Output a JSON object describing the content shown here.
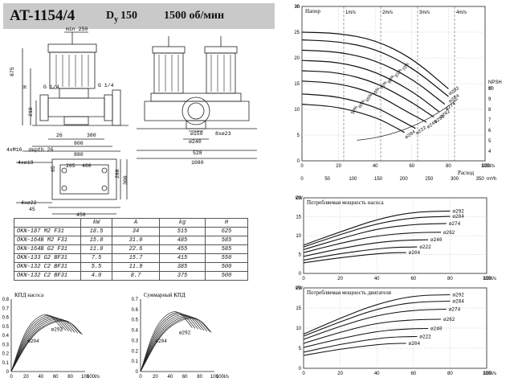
{
  "header": {
    "title": "AT-1154/4",
    "dn_prefix": "D",
    "dn_sub": "y",
    "dn_value": "150",
    "speed": "1500 об/мин"
  },
  "drawing": {
    "dims": [
      "min 250",
      "875",
      "H",
      "210",
      "G 1/4",
      "G 1/4",
      "26",
      "380",
      "800",
      "880",
      "4xM16, depth 26",
      "4xø19",
      "65",
      "265",
      "280",
      "300",
      "400",
      "4xø22",
      "45",
      "450",
      "ø150",
      "ø240",
      "8xø23",
      "528",
      "1080"
    ]
  },
  "spec_table": {
    "headers": [
      "",
      "kW",
      "A",
      "kg",
      "H"
    ],
    "rows": [
      [
        "OKN-187 M2 F31",
        "18.5",
        "34",
        "515",
        "625"
      ],
      [
        "OKN-164B M2 F31",
        "15.0",
        "31.0",
        "485",
        "585"
      ],
      [
        "OKN-164B G2 F31",
        "11.0",
        "22.6",
        "455",
        "585"
      ],
      [
        "OKN-133 G2 BF31",
        "7.5",
        "15.7",
        "415",
        "550"
      ],
      [
        "OKN-132 C2 BF31",
        "5.5",
        "11.9",
        "385",
        "500"
      ],
      [
        "OKN-132 C2 BF31",
        "4.0",
        "8.7",
        "375",
        "500"
      ]
    ]
  },
  "chart_data": [
    {
      "type": "line",
      "title": "КПД насоса",
      "x": [
        0,
        20,
        40,
        60,
        80,
        100
      ],
      "xunit": "100l/s",
      "ylim": [
        0,
        0.8
      ],
      "yticks": [
        0,
        0.1,
        0.2,
        0.3,
        0.4,
        0.5,
        0.6,
        0.7,
        0.8
      ],
      "labels": [
        "ø292",
        "ø204"
      ]
    },
    {
      "type": "line",
      "title": "Суммарный КПД",
      "x": [
        0,
        20,
        40,
        60,
        80,
        100
      ],
      "xunit": "100l/s",
      "ylim": [
        0,
        0.7
      ],
      "yticks": [
        0,
        0.1,
        0.2,
        0.3,
        0.4,
        0.5,
        0.6,
        0.7
      ],
      "labels": [
        "ø292",
        "ø204"
      ]
    },
    {
      "type": "line",
      "title": "Напор",
      "yunit": "m",
      "xunit": "100l/s",
      "xlabel": "Расход",
      "xticks": [
        0,
        20,
        40,
        60,
        80,
        100
      ],
      "yticks": [
        0,
        5,
        10,
        15,
        20,
        25,
        30
      ],
      "xticks_m3h": [
        0,
        50,
        100,
        150,
        200,
        250,
        300,
        350
      ],
      "xunit_m3h": "m³/h",
      "velocity_labels": [
        "1m/s",
        "2m/s",
        "3m/s",
        "4m/s"
      ],
      "npsh_label": "NPSH",
      "npsh_unit": "m",
      "npsh_ticks": [
        4,
        5,
        6,
        7,
        8,
        9,
        10
      ],
      "eff_labels": [
        "50%",
        "60%",
        "65%",
        "70%",
        "75%",
        "80%",
        "81%",
        "70%"
      ],
      "series": [
        {
          "name": "ø292",
          "x": [
            0,
            20,
            40,
            60,
            80
          ],
          "y": [
            25,
            24.8,
            23.5,
            20,
            14
          ]
        },
        {
          "name": "ø284",
          "x": [
            0,
            20,
            40,
            60,
            80
          ],
          "y": [
            23.5,
            23.2,
            21.8,
            18.2,
            12.5
          ]
        },
        {
          "name": "ø274",
          "x": [
            0,
            20,
            40,
            60,
            78
          ],
          "y": [
            21.5,
            21.2,
            19.6,
            16,
            11
          ]
        },
        {
          "name": "ø262",
          "x": [
            0,
            20,
            40,
            60,
            75
          ],
          "y": [
            19.5,
            19.2,
            17.4,
            13.6,
            9.5
          ]
        },
        {
          "name": "ø252",
          "x": [
            0,
            20,
            40,
            60,
            72
          ],
          "y": [
            17.5,
            17.2,
            15.3,
            11.4,
            8.5
          ]
        },
        {
          "name": "ø240",
          "x": [
            0,
            20,
            40,
            55,
            68
          ],
          "y": [
            15.5,
            15.1,
            13.1,
            10,
            7.5
          ]
        },
        {
          "name": "ø222",
          "x": [
            0,
            20,
            40,
            50,
            62
          ],
          "y": [
            13,
            12.5,
            10.5,
            8.6,
            6.3
          ]
        },
        {
          "name": "ø204",
          "x": [
            0,
            20,
            40,
            50,
            56
          ],
          "y": [
            11,
            10.5,
            8.5,
            6.7,
            5.5
          ]
        }
      ]
    },
    {
      "type": "line",
      "title": "Потребляемая мощность насоса",
      "yunit": "kW",
      "xunit": "100l/s",
      "xticks": [
        0,
        20,
        40,
        60,
        80,
        100
      ],
      "yticks": [
        0,
        5,
        10,
        15,
        20
      ],
      "series": [
        {
          "name": "ø292",
          "x": [
            0,
            20,
            40,
            60,
            80
          ],
          "y": [
            7.5,
            11,
            14.3,
            16.3,
            16.5
          ]
        },
        {
          "name": "ø284",
          "x": [
            0,
            20,
            40,
            60,
            80
          ],
          "y": [
            7,
            10.3,
            13.2,
            14.8,
            15.1
          ]
        },
        {
          "name": "ø274",
          "x": [
            0,
            20,
            40,
            60,
            78
          ],
          "y": [
            6.3,
            9.2,
            11.8,
            13,
            13.2
          ]
        },
        {
          "name": "ø262",
          "x": [
            0,
            20,
            40,
            60,
            75
          ],
          "y": [
            5.5,
            8,
            10,
            10.8,
            10.9
          ]
        },
        {
          "name": "ø240",
          "x": [
            0,
            20,
            40,
            55,
            68
          ],
          "y": [
            4.5,
            6.6,
            8.2,
            8.8,
            8.9
          ]
        },
        {
          "name": "ø222",
          "x": [
            0,
            20,
            40,
            50,
            62
          ],
          "y": [
            3.5,
            5.3,
            6.5,
            6.9,
            7
          ]
        },
        {
          "name": "ø204",
          "x": [
            0,
            20,
            40,
            50,
            56
          ],
          "y": [
            2.8,
            4.2,
            5.2,
            5.5,
            5.5
          ]
        }
      ]
    },
    {
      "type": "line",
      "title": "Потребляемая мощность двигателя",
      "yunit": "kW",
      "xunit": "100l/s",
      "xticks": [
        0,
        20,
        40,
        60,
        80,
        100
      ],
      "yticks": [
        0,
        5,
        10,
        15,
        20
      ],
      "series": [
        {
          "name": "ø292",
          "x": [
            0,
            20,
            40,
            60,
            80
          ],
          "y": [
            8.5,
            12.5,
            16,
            18.1,
            18.3
          ]
        },
        {
          "name": "ø284",
          "x": [
            0,
            20,
            40,
            60,
            80
          ],
          "y": [
            8,
            11.6,
            14.8,
            16.5,
            16.7
          ]
        },
        {
          "name": "ø274",
          "x": [
            0,
            20,
            40,
            60,
            78
          ],
          "y": [
            7.2,
            10.5,
            13.2,
            14.5,
            14.7
          ]
        },
        {
          "name": "ø262",
          "x": [
            0,
            20,
            40,
            60,
            75
          ],
          "y": [
            6.2,
            9,
            11.3,
            12.1,
            12.2
          ]
        },
        {
          "name": "ø240",
          "x": [
            0,
            20,
            40,
            55,
            68
          ],
          "y": [
            5.2,
            7.4,
            9.2,
            9.8,
            9.9
          ]
        },
        {
          "name": "ø222",
          "x": [
            0,
            20,
            40,
            50,
            62
          ],
          "y": [
            4,
            6,
            7.4,
            7.8,
            7.9
          ]
        },
        {
          "name": "ø204",
          "x": [
            0,
            20,
            40,
            50,
            56
          ],
          "y": [
            3.2,
            4.8,
            5.9,
            6.2,
            6.2
          ]
        }
      ]
    }
  ]
}
